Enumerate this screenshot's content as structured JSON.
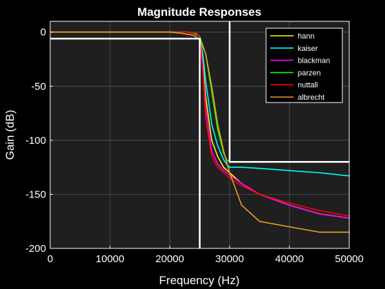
{
  "chart_data": {
    "type": "line",
    "title": "Magnitude Responses",
    "xlabel": "Frequency (Hz)",
    "ylabel": "Gain (dB)",
    "xlim": [
      0,
      50000
    ],
    "ylim": [
      -200,
      10
    ],
    "xticks": [
      0,
      10000,
      20000,
      30000,
      40000,
      50000
    ],
    "yticks": [
      -200,
      -150,
      -100,
      -50,
      0
    ],
    "grid": true,
    "legend_position": "top-right",
    "colors": {
      "figure_bg": "#000000",
      "axes_bg": "#1f1f1f",
      "grid": "#5a5a5a",
      "spec": "#ffffff"
    },
    "series": [
      {
        "name": "hann",
        "color": "#ffff00",
        "x": [
          0,
          23000,
          24500,
          25000,
          25500,
          26000,
          27000,
          28000,
          29000,
          30000,
          32000,
          35000,
          40000,
          45000,
          50000
        ],
        "y": [
          0,
          0,
          -1,
          -5,
          -25,
          -60,
          -100,
          -115,
          -125,
          -130,
          -140,
          -150,
          -160,
          -168,
          -172
        ]
      },
      {
        "name": "kaiser",
        "color": "#00ffff",
        "x": [
          0,
          23000,
          24500,
          25000,
          25500,
          26000,
          27000,
          28000,
          29000,
          29500,
          30000,
          32000,
          35000,
          40000,
          45000,
          50000
        ],
        "y": [
          0,
          0,
          -1,
          -5,
          -20,
          -45,
          -85,
          -105,
          -118,
          -122,
          -125,
          -125,
          -126,
          -128,
          -130,
          -133
        ]
      },
      {
        "name": "blackman",
        "color": "#ff00ff",
        "x": [
          0,
          23000,
          24500,
          25000,
          25500,
          26000,
          27000,
          28000,
          29000,
          30000,
          32000,
          35000,
          40000,
          45000,
          50000
        ],
        "y": [
          0,
          0,
          -1,
          -5,
          -30,
          -70,
          -110,
          -122,
          -128,
          -132,
          -140,
          -150,
          -160,
          -168,
          -172
        ]
      },
      {
        "name": "parzen",
        "color": "#00ff00",
        "x": [
          0,
          23000,
          24000,
          25000,
          26000,
          27000,
          28000,
          29000,
          29500,
          30000
        ],
        "y": [
          0,
          0,
          -1,
          -4,
          -20,
          -55,
          -90,
          -112,
          -118,
          -120
        ]
      },
      {
        "name": "nuttall",
        "color": "#ff0000",
        "x": [
          0,
          23000,
          24500,
          25000,
          25500,
          26000,
          27000,
          28000,
          29000,
          30000,
          32000,
          35000,
          40000,
          45000,
          50000
        ],
        "y": [
          0,
          0,
          -1,
          -5,
          -35,
          -80,
          -115,
          -125,
          -130,
          -135,
          -142,
          -150,
          -158,
          -165,
          -170
        ]
      },
      {
        "name": "albrecht",
        "color": "#f0a020",
        "x": [
          0,
          20000,
          22000,
          24000,
          25000,
          26000,
          27000,
          28000,
          29000,
          30000,
          32000,
          35000,
          40000,
          45000,
          50000
        ],
        "y": [
          0,
          0,
          -1,
          -3,
          -7,
          -20,
          -50,
          -85,
          -110,
          -130,
          -160,
          -175,
          -180,
          -185,
          -185
        ]
      }
    ],
    "spec_lines": [
      {
        "x": [
          0,
          25000,
          25000
        ],
        "y": [
          -6,
          -6,
          -200
        ]
      },
      {
        "x": [
          30000,
          30000,
          50000
        ],
        "y": [
          10,
          -120,
          -120
        ]
      }
    ]
  }
}
